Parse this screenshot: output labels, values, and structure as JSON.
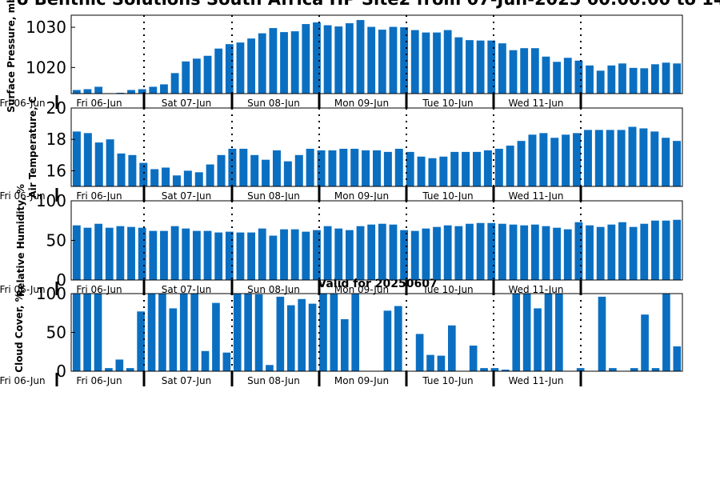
{
  "figure": {
    "title": "o Benthic Solutions South Africa HP Site2 from 07-Jun-2025 00:00:00 to 14-J",
    "subtitle": "Valid for 20250607"
  },
  "chart_data": [
    {
      "type": "bar",
      "ylabel": "Surface Pressure, mb",
      "ylim": [
        1013.5,
        1033
      ],
      "yticks": [
        1020,
        1030
      ],
      "values": [
        1014.4,
        1014.6,
        1015.2,
        1013.3,
        1013.7,
        1014.4,
        1014.6,
        1015.2,
        1015.8,
        1018.6,
        1021.5,
        1022.2,
        1022.9,
        1024.7,
        1025.8,
        1026.2,
        1027.2,
        1028.5,
        1029.8,
        1028.8,
        1029.0,
        1030.8,
        1031.2,
        1030.5,
        1030.2,
        1031.0,
        1031.8,
        1030.1,
        1029.4,
        1030.1,
        1030.0,
        1029.3,
        1028.7,
        1028.7,
        1029.3,
        1027.5,
        1026.8,
        1026.7,
        1026.7,
        1026.0,
        1024.3,
        1024.8,
        1024.8,
        1022.7,
        1021.4,
        1022.4,
        1021.7,
        1020.5,
        1019.2,
        1020.5,
        1021.0,
        1019.9,
        1019.8,
        1020.8,
        1021.2,
        1021.0
      ],
      "xticklabels": [
        "Fri 06-Jun",
        "Sat 07-Jun",
        "Sun 08-Jun",
        "Mon 09-Jun",
        "Tue 10-Jun",
        "Wed 11-Jun"
      ],
      "extra_tick_label": "Fri 06-Jun"
    },
    {
      "type": "bar",
      "ylabel": "Air Temperature, C",
      "ylim": [
        15.0,
        20.0
      ],
      "yticks": [
        16,
        18,
        20
      ],
      "values": [
        18.5,
        18.4,
        17.8,
        18.0,
        17.1,
        17.0,
        16.5,
        16.1,
        16.2,
        15.7,
        16.0,
        15.9,
        16.4,
        17.0,
        17.4,
        17.4,
        17.0,
        16.7,
        17.3,
        16.6,
        17.0,
        17.4,
        17.3,
        17.3,
        17.4,
        17.4,
        17.3,
        17.3,
        17.2,
        17.4,
        17.2,
        16.9,
        16.8,
        16.9,
        17.2,
        17.2,
        17.2,
        17.3,
        17.4,
        17.6,
        17.9,
        18.3,
        18.4,
        18.1,
        18.3,
        18.4,
        18.6,
        18.6,
        18.6,
        18.6,
        18.8,
        18.7,
        18.5,
        18.1,
        17.9
      ],
      "xticklabels": [
        "Fri 06-Jun",
        "Sat 07-Jun",
        "Sun 08-Jun",
        "Mon 09-Jun",
        "Tue 10-Jun",
        "Wed 11-Jun"
      ],
      "extra_tick_label": "Fri 06-Jun"
    },
    {
      "type": "bar",
      "ylabel": "Relative Humidity, %",
      "ylim": [
        0,
        100
      ],
      "yticks": [
        0,
        50,
        100
      ],
      "values": [
        69,
        66,
        71,
        66,
        68,
        67,
        66,
        62,
        62,
        68,
        65,
        62,
        62,
        60,
        61,
        60,
        60,
        65,
        56,
        64,
        64,
        61,
        63,
        68,
        65,
        63,
        68,
        70,
        71,
        70,
        63,
        62,
        65,
        67,
        69,
        68,
        71,
        72,
        72,
        71,
        70,
        69,
        70,
        68,
        66,
        64,
        73,
        69,
        67,
        70,
        73,
        67,
        71,
        75,
        75,
        76
      ],
      "xticklabels": [
        "Fri 06-Jun",
        "Sat 07-Jun",
        "Sun 08-Jun",
        "Mon 09-Jun",
        "Tue 10-Jun",
        "Wed 11-Jun"
      ],
      "extra_tick_label": "Fri 06-Jun"
    },
    {
      "type": "bar",
      "ylabel": "Cloud Cover, %",
      "ylim": [
        0,
        100
      ],
      "yticks": [
        0,
        50,
        100
      ],
      "values": [
        100,
        100,
        100,
        4,
        15,
        4,
        77,
        100,
        100,
        81,
        100,
        100,
        26,
        88,
        24,
        100,
        100,
        99,
        8,
        96,
        85,
        93,
        87,
        100,
        100,
        67,
        100,
        0,
        0,
        78,
        84,
        0,
        48,
        21,
        20,
        59,
        0,
        33,
        4,
        4,
        2,
        100,
        100,
        81,
        100,
        100,
        0,
        4,
        0,
        96,
        4,
        0,
        4,
        73,
        4,
        100,
        32
      ],
      "xticklabels": [
        "Fri 06-Jun",
        "Sat 07-Jun",
        "Sun 08-Jun",
        "Mon 09-Jun",
        "Tue 10-Jun",
        "Wed 11-Jun"
      ],
      "extra_tick_label": "Fri 06-Jun"
    }
  ]
}
